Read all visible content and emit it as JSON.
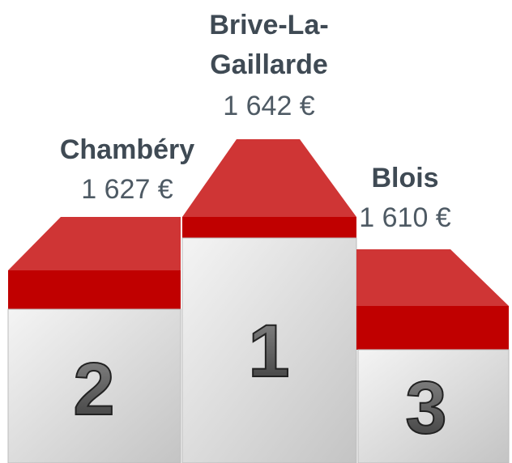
{
  "podium": [
    {
      "rank": "2",
      "name_lines": [
        "Chambéry"
      ],
      "price": "1 627 €"
    },
    {
      "rank": "1",
      "name_lines": [
        "Brive-La-",
        "Gaillarde"
      ],
      "price": "1 642 €"
    },
    {
      "rank": "3",
      "name_lines": [
        "Blois"
      ],
      "price": "1 610 €"
    }
  ]
}
